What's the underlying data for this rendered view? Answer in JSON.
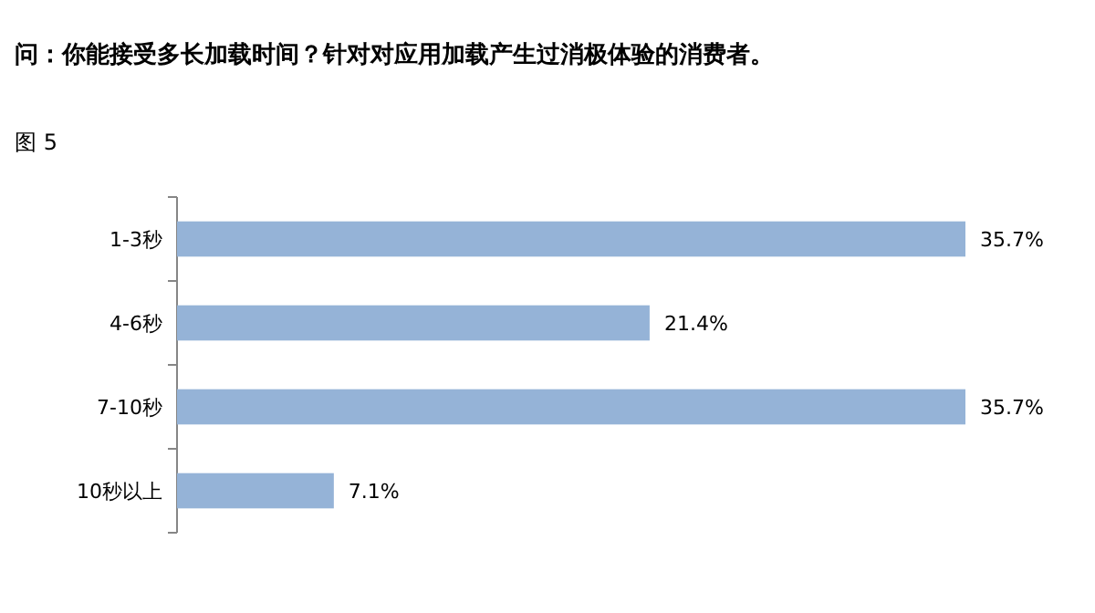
{
  "chart_data": {
    "type": "bar",
    "orientation": "horizontal",
    "title": "问：你能接受多长加载时间？针对对应用加载产生过消极体验的消费者。",
    "subtitle": "图 5",
    "categories": [
      "1-3秒",
      "4-6秒",
      "7-10秒",
      "10秒以上"
    ],
    "values": [
      35.7,
      21.4,
      35.7,
      7.1
    ],
    "color": "#95b3d7",
    "value_labels": [
      "35.7%",
      "21.4%",
      "35.7%",
      "7.1%"
    ]
  }
}
